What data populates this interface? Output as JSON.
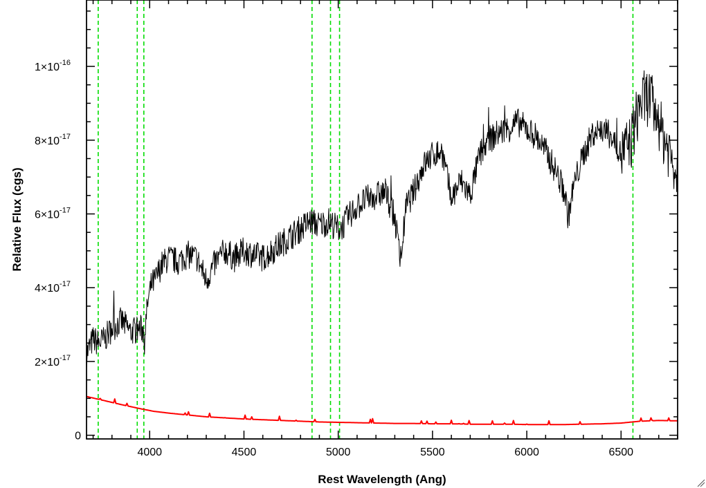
{
  "chart_data": {
    "type": "line",
    "xlabel": "Rest Wavelength (Ang)",
    "ylabel": "Relative Flux (cgs)",
    "xlim": [
      3665,
      6800
    ],
    "ylim": [
      -1e-18,
      1.18e-16
    ],
    "x_ticks": [
      {
        "value": 4000,
        "label": "4000"
      },
      {
        "value": 4500,
        "label": "4500"
      },
      {
        "value": 5000,
        "label": "5000"
      },
      {
        "value": 5500,
        "label": "5500"
      },
      {
        "value": 6000,
        "label": "6000"
      },
      {
        "value": 6500,
        "label": "6500"
      }
    ],
    "y_ticks": [
      {
        "value": 0,
        "mant": "0",
        "exp": ""
      },
      {
        "value": 2e-17,
        "mant": "2×10",
        "exp": "-17"
      },
      {
        "value": 4e-17,
        "mant": "4×10",
        "exp": "-17"
      },
      {
        "value": 6e-17,
        "mant": "6×10",
        "exp": "-17"
      },
      {
        "value": 8e-17,
        "mant": "8×10",
        "exp": "-17"
      },
      {
        "value": 1e-16,
        "mant": "1×10",
        "exp": "-16"
      }
    ],
    "minor_x_step": 100,
    "minor_y_step": 5e-18,
    "reference_lines_x": [
      3727,
      3934,
      3969,
      4861,
      4959,
      5007,
      6563
    ],
    "series": [
      {
        "color": "#000000",
        "x": [
          3665,
          3700,
          3730,
          3760,
          3800,
          3850,
          3900,
          3950,
          3975,
          3990,
          4010,
          4030,
          4060,
          4100,
          4150,
          4200,
          4250,
          4300,
          4350,
          4400,
          4450,
          4500,
          4550,
          4600,
          4650,
          4700,
          4750,
          4800,
          4850,
          4900,
          4950,
          5000,
          5030,
          5050,
          5100,
          5150,
          5200,
          5250,
          5300,
          5330,
          5360,
          5400,
          5450,
          5500,
          5550,
          5600,
          5650,
          5700,
          5750,
          5800,
          5850,
          5900,
          5950,
          6000,
          6050,
          6100,
          6150,
          6200,
          6220,
          6250,
          6300,
          6350,
          6400,
          6450,
          6500,
          6550,
          6600,
          6650,
          6700,
          6750,
          6800
        ],
        "y": [
          2.2e-17,
          2.6e-17,
          2.5e-17,
          2.6e-17,
          2.9e-17,
          3.1e-17,
          2.8e-17,
          2.9e-17,
          2.8e-17,
          3.6e-17,
          4.1e-17,
          4.2e-17,
          4.6e-17,
          4.8e-17,
          4.7e-17,
          4.9e-17,
          4.8e-17,
          4.2e-17,
          4.7e-17,
          5e-17,
          4.8e-17,
          5e-17,
          4.9e-17,
          4.8e-17,
          5e-17,
          5.2e-17,
          5.4e-17,
          5.6e-17,
          5.8e-17,
          5.7e-17,
          5.8e-17,
          5.6e-17,
          5.7e-17,
          5.9e-17,
          6.2e-17,
          6.4e-17,
          6.5e-17,
          6.6e-17,
          5.9e-17,
          4.7e-17,
          6.2e-17,
          6.6e-17,
          7.3e-17,
          7.6e-17,
          7.7e-17,
          6.4e-17,
          6.9e-17,
          6.5e-17,
          7.6e-17,
          8e-17,
          8.2e-17,
          8.3e-17,
          8.5e-17,
          8.3e-17,
          8.1e-17,
          7.7e-17,
          7.2e-17,
          6.6e-17,
          5.9e-17,
          6.8e-17,
          7.6e-17,
          8.2e-17,
          8.3e-17,
          8.1e-17,
          7.6e-17,
          7.9e-17,
          9e-17,
          9.2e-17,
          8.4e-17,
          7.8e-17,
          7.1e-17
        ]
      },
      {
        "color": "#ff0000",
        "x": [
          3665,
          3750,
          3850,
          3950,
          4020,
          4100,
          4200,
          4300,
          4400,
          4500,
          4600,
          4700,
          4800,
          4900,
          5000,
          5100,
          5200,
          5300,
          5400,
          5500,
          5600,
          5700,
          5800,
          5900,
          6000,
          6100,
          6200,
          6300,
          6400,
          6500,
          6600,
          6700,
          6800
        ],
        "y": [
          1.05e-17,
          9.5e-18,
          8.3e-18,
          7.2e-18,
          6.5e-18,
          6e-18,
          5.5e-18,
          5e-18,
          4.7e-18,
          4.4e-18,
          4.2e-18,
          4e-18,
          3.8e-18,
          3.6e-18,
          3.5e-18,
          3.4e-18,
          3.3e-18,
          3.2e-18,
          3.2e-18,
          3.1e-18,
          3.1e-18,
          3e-18,
          3e-18,
          3e-18,
          2.9e-18,
          2.9e-18,
          2.9e-18,
          3e-18,
          3.1e-18,
          3.3e-18,
          3.8e-18,
          4e-18,
          3.9e-18
        ]
      }
    ]
  }
}
